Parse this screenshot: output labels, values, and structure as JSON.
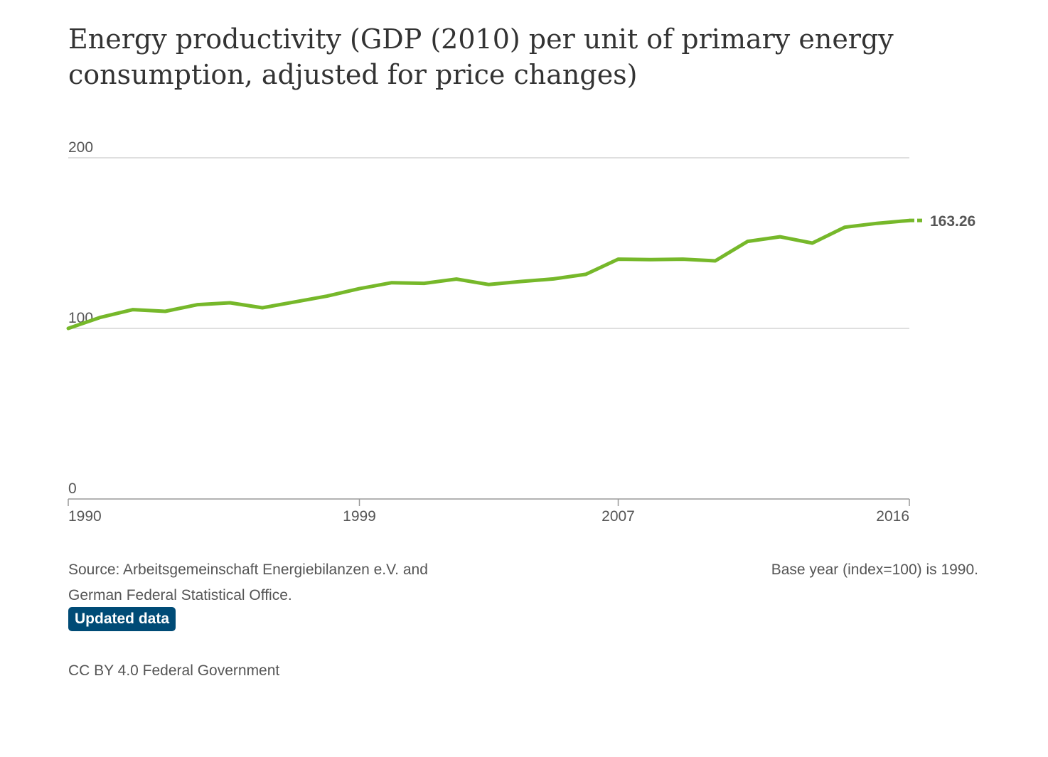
{
  "chart_data": {
    "type": "line",
    "title": "Energy productivity (GDP (2010) per unit of primary energy consumption, adjusted for price changes)",
    "x": [
      1990,
      1991,
      1992,
      1993,
      1994,
      1995,
      1996,
      1997,
      1998,
      1999,
      2000,
      2001,
      2002,
      2003,
      2004,
      2005,
      2006,
      2007,
      2008,
      2009,
      2010,
      2011,
      2012,
      2013,
      2014,
      2015,
      2016
    ],
    "series": [
      {
        "values": [
          100.0,
          106.5,
          111.0,
          110.0,
          113.9,
          115.0,
          112.1,
          115.5,
          118.9,
          123.3,
          126.8,
          126.4,
          128.9,
          125.7,
          127.5,
          129.0,
          131.7,
          140.6,
          140.3,
          140.6,
          139.6,
          151.0,
          153.7,
          150.0,
          159.3,
          161.6,
          163.26
        ],
        "color": "#76b82a"
      }
    ],
    "end_label": "163.26",
    "ylim": [
      0,
      200
    ],
    "yticks": [
      "0",
      "100",
      "200"
    ],
    "xticks": [
      "1990",
      "1999",
      "2007",
      "2016"
    ],
    "grid": true,
    "xlabel": "",
    "ylabel": ""
  },
  "footer": {
    "source_line1": "Source: Arbeitsgemeinschaft Energiebilanzen e.V. and",
    "source_line2": "German Federal Statistical Office.",
    "updated_label": "Updated data",
    "base_note": "Base year (index=100) is 1990.",
    "license": "CC BY 4.0 Federal Government"
  }
}
